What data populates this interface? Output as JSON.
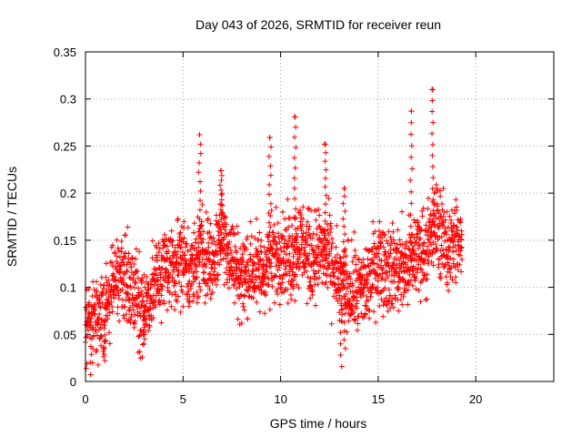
{
  "chart_data": {
    "type": "scatter",
    "title": "Day 043 of 2026, SRMTID for receiver reun",
    "xlabel": "GPS time / hours",
    "ylabel": "SRMTID / TECUs",
    "xlim": [
      0,
      24
    ],
    "ylim": [
      0,
      0.35
    ],
    "xticks": [
      0,
      5,
      10,
      15,
      20
    ],
    "xtick_labels": [
      "0",
      "5",
      "10",
      "15",
      "20"
    ],
    "yticks": [
      0,
      0.05,
      0.1,
      0.15,
      0.2,
      0.25,
      0.3,
      0.35
    ],
    "ytick_labels": [
      "0",
      "0.05",
      "0.1",
      "0.15",
      "0.2",
      "0.25",
      "0.3",
      "0.35"
    ],
    "grid": true,
    "marker": "+",
    "marker_color": "#ff0000",
    "series": [
      {
        "name": "SRMTID",
        "trend": {
          "x": [
            0,
            0.5,
            1.0,
            1.5,
            2.0,
            2.5,
            3.0,
            3.5,
            4.0,
            4.5,
            5.0,
            5.5,
            6.0,
            6.5,
            7.0,
            7.5,
            8.0,
            8.5,
            9.0,
            9.5,
            10.0,
            10.5,
            11.0,
            11.5,
            12.0,
            12.5,
            13.0,
            13.5,
            14.0,
            14.5,
            15.0,
            15.5,
            16.0,
            16.5,
            17.0,
            17.5,
            18.0,
            18.5,
            19.0,
            19.3
          ],
          "y": [
            0.06,
            0.065,
            0.07,
            0.11,
            0.11,
            0.095,
            0.075,
            0.1,
            0.12,
            0.125,
            0.13,
            0.115,
            0.14,
            0.125,
            0.16,
            0.13,
            0.11,
            0.12,
            0.115,
            0.13,
            0.14,
            0.13,
            0.15,
            0.13,
            0.14,
            0.13,
            0.1,
            0.1,
            0.095,
            0.105,
            0.13,
            0.12,
            0.12,
            0.12,
            0.14,
            0.14,
            0.17,
            0.14,
            0.15,
            0.14
          ]
        },
        "peaks": [
          {
            "x": 5.85,
            "y": 0.262
          },
          {
            "x": 6.95,
            "y": 0.224
          },
          {
            "x": 9.45,
            "y": 0.259
          },
          {
            "x": 10.75,
            "y": 0.281
          },
          {
            "x": 12.3,
            "y": 0.252
          },
          {
            "x": 13.25,
            "y": 0.205
          },
          {
            "x": 16.7,
            "y": 0.287
          },
          {
            "x": 17.8,
            "y": 0.31
          }
        ],
        "troughs": [
          {
            "x": 1.0,
            "y": 0.022
          },
          {
            "x": 3.0,
            "y": 0.04
          },
          {
            "x": 13.1,
            "y": 0.016
          },
          {
            "x": 13.3,
            "y": 0.035
          }
        ]
      }
    ]
  }
}
